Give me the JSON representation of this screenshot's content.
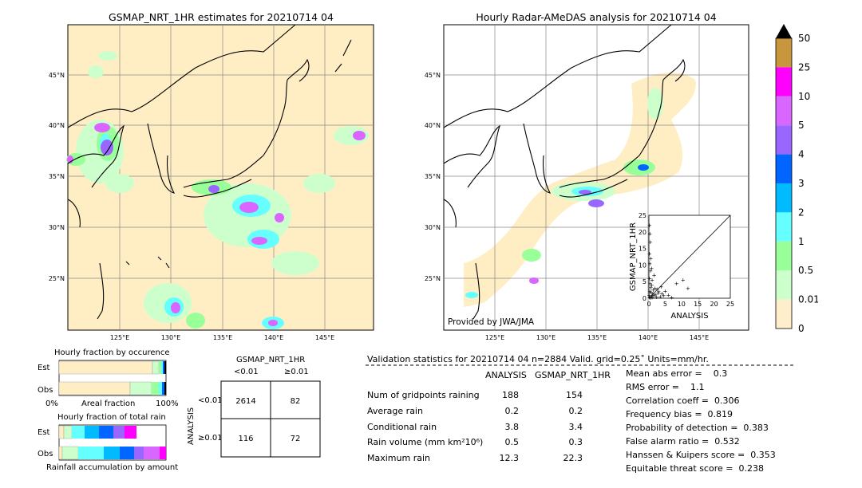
{
  "left_map": {
    "title": "GSMAP_NRT_1HR estimates for 20210714 04",
    "lon_ticks": [
      "125°E",
      "130°E",
      "135°E",
      "140°E",
      "145°E"
    ],
    "lat_ticks": [
      "45°N",
      "40°N",
      "35°N",
      "30°N",
      "25°N"
    ]
  },
  "right_map": {
    "title": "Hourly Radar-AMeDAS analysis for 20210714 04",
    "lon_ticks": [
      "125°E",
      "130°E",
      "135°E",
      "140°E",
      "145°E"
    ],
    "lat_ticks": [
      "45°N",
      "40°N",
      "35°N",
      "30°N",
      "25°N"
    ],
    "credit": "Provided by JWA/JMA"
  },
  "colorbar": {
    "labels": [
      "50",
      "25",
      "10",
      "5",
      "4",
      "3",
      "2",
      "1",
      "0.5",
      "0.01",
      "0"
    ],
    "colors": [
      "#c8963c",
      "#ff00ff",
      "#d966ff",
      "#9966ff",
      "#0066ff",
      "#00bbff",
      "#66ffff",
      "#99ff99",
      "#ccffcc",
      "#ffeecc"
    ]
  },
  "chart_data": [
    {
      "type": "scatter",
      "xlabel": "ANALYSIS",
      "ylabel": "GSMAP_NRT_1HR",
      "xlim": [
        0,
        25
      ],
      "ylim": [
        0,
        25
      ],
      "ticks": [
        "0",
        "5",
        "10",
        "15",
        "20",
        "25"
      ],
      "points": [
        [
          0.2,
          0.3
        ],
        [
          0.5,
          0.1
        ],
        [
          0.8,
          0.6
        ],
        [
          1.0,
          0.2
        ],
        [
          1.2,
          1.5
        ],
        [
          0.3,
          2.0
        ],
        [
          0.6,
          3.2
        ],
        [
          1.5,
          0.8
        ],
        [
          2.0,
          1.1
        ],
        [
          2.3,
          0.4
        ],
        [
          0.4,
          4.5
        ],
        [
          0.2,
          6.0
        ],
        [
          0.5,
          8.3
        ],
        [
          0.3,
          10.5
        ],
        [
          0.6,
          12.0
        ],
        [
          0.2,
          13.5
        ],
        [
          0.4,
          17.0
        ],
        [
          0.3,
          19.5
        ],
        [
          0.2,
          22.0
        ],
        [
          3.0,
          2.0
        ],
        [
          3.5,
          0.5
        ],
        [
          4.0,
          1.5
        ],
        [
          5.0,
          2.2
        ],
        [
          1.0,
          5.5
        ],
        [
          1.8,
          3.0
        ],
        [
          2.5,
          2.8
        ],
        [
          6.0,
          1.0
        ],
        [
          7.0,
          0.3
        ],
        [
          8.5,
          4.5
        ],
        [
          10.5,
          5.5
        ],
        [
          12.0,
          3.0
        ],
        [
          0.1,
          1.0
        ],
        [
          0.7,
          1.8
        ],
        [
          1.3,
          2.5
        ],
        [
          0.9,
          4.0
        ],
        [
          2.8,
          1.6
        ],
        [
          3.8,
          3.5
        ],
        [
          4.5,
          0.8
        ],
        [
          1.6,
          7.0
        ],
        [
          0.8,
          9.0
        ]
      ]
    },
    {
      "type": "bar",
      "title": "Hourly fraction by occurence",
      "categories": [
        "Est",
        "Obs"
      ],
      "xlabel": "Areal fraction",
      "xticks": [
        "0%",
        "100%"
      ]
    },
    {
      "type": "bar",
      "title": "Hourly fraction of total rain",
      "categories": [
        "Est",
        "Obs"
      ],
      "xlabel": "Rainfall accumulation by amount"
    },
    {
      "type": "table",
      "title": "GSMAP_NRT_1HR",
      "col_headers": [
        "<0.01",
        "≥0.01"
      ],
      "row_headers": [
        "<0.01",
        "≥0.01"
      ],
      "row_axis_label": "ANALYSIS",
      "cells": [
        [
          "2614",
          "82"
        ],
        [
          "116",
          "72"
        ]
      ]
    }
  ],
  "validation": {
    "header": "Validation statistics for 20210714 04  n=2884 Valid. grid=0.25˚ Units=mm/hr.",
    "col_analysis": "ANALYSIS",
    "col_gsmap": "GSMAP_NRT_1HR",
    "rows": [
      {
        "label": "Num of gridpoints raining",
        "analysis": "188",
        "gsmap": "154"
      },
      {
        "label": "Average rain",
        "analysis": "0.2",
        "gsmap": "0.2"
      },
      {
        "label": "Conditional rain",
        "analysis": "3.8",
        "gsmap": "3.4"
      },
      {
        "label": "Rain volume (mm km²10⁶)",
        "analysis": "0.5",
        "gsmap": "0.3"
      },
      {
        "label": "Maximum rain",
        "analysis": "12.3",
        "gsmap": "22.3"
      }
    ],
    "scores": [
      "Mean abs error =    0.3",
      "RMS error =    1.1",
      "Correlation coeff =  0.306",
      "Frequency bias =  0.819",
      "Probability of detection =  0.383",
      "False alarm ratio =  0.532",
      "Hanssen & Kuipers score =  0.353",
      "Equitable threat score =  0.238"
    ]
  }
}
